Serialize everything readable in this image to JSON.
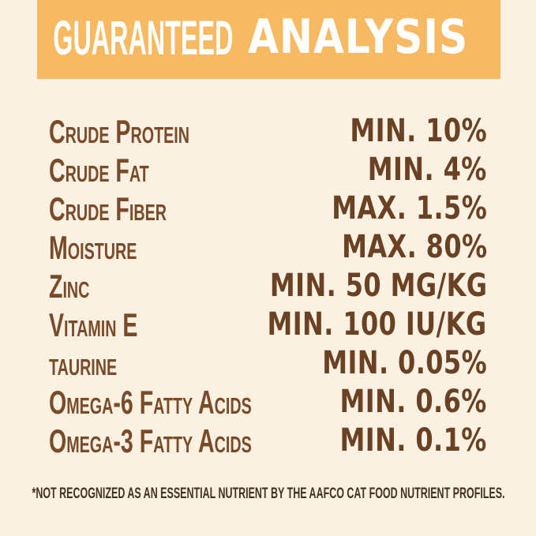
{
  "header": {
    "title_light": "GUARANTEED",
    "title_bold": "ANALYSIS"
  },
  "table": {
    "rows": [
      {
        "label": "Crude Protein",
        "value": "MIN. 10%"
      },
      {
        "label": "Crude Fat",
        "value": "MIN. 4%"
      },
      {
        "label": "Crude Fiber",
        "value": "MAX. 1.5%"
      },
      {
        "label": "Moisture",
        "value": "MAX. 80%"
      },
      {
        "label": "Zinc",
        "value": "MIN. 50 MG/KG"
      },
      {
        "label": "Vitamin E",
        "value": "MIN. 100 IU/KG"
      },
      {
        "label": "taurine",
        "value": "MIN. 0.05%"
      },
      {
        "label": "Omega-6 Fatty Acids",
        "value": "MIN. 0.6%"
      },
      {
        "label": "Omega-3 Fatty Acids",
        "value": "MIN. 0.1%"
      }
    ]
  },
  "footer": {
    "note": "*NOT RECOGNIZED AS AN ESSENTIAL NUTRIENT BY THE AAFCO CAT FOOD NUTRIENT PROFILES."
  },
  "colors": {
    "background_cream": "#FAF1E3",
    "header_orange": "#F7BA62",
    "header_text": "#FFFFFF",
    "label_brown": "#7A4B28",
    "value_brown": "#6B4123",
    "footnote_brown": "#46301F"
  }
}
